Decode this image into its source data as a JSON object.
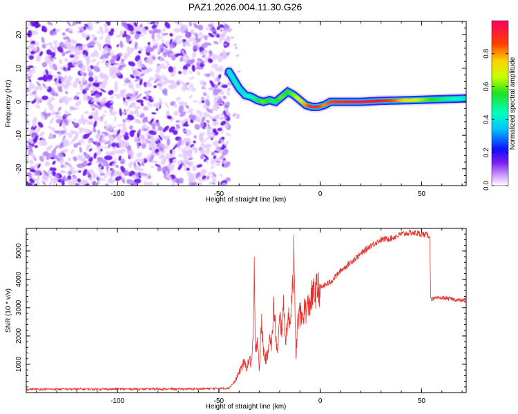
{
  "title": "PAZ1.2026.004.11.30.G26",
  "colors": {
    "snr_line": "#e8302a",
    "track_hot": "#ff2a3a",
    "track_green": "#22d84a",
    "track_cyan": "#20c8e6",
    "track_blue": "#1a3cf0",
    "noise_purple": "#7a1cf0"
  },
  "chart_data": [
    {
      "type": "heatmap",
      "title": "PAZ1.2026.004.11.30.G26",
      "xlabel": "Height of straight line (km)",
      "ylabel": "Frequency (Hz)",
      "xlim": [
        -145,
        72
      ],
      "ylim": [
        -25,
        24
      ],
      "xticks": [
        -100,
        -50,
        0,
        50
      ],
      "xtick_labels": [
        "-100",
        "-50",
        "0",
        "50"
      ],
      "yticks": [
        -20,
        -10,
        0,
        10,
        20
      ],
      "ytick_labels": [
        "-20",
        "-10",
        "0",
        "10",
        "20"
      ],
      "noise_region": {
        "x": [
          -145,
          -45
        ],
        "y": [
          -25,
          24
        ]
      },
      "ridge_x": [
        -45,
        -42,
        -40,
        -37,
        -34,
        -31,
        -28,
        -25,
        -22,
        -19,
        -16,
        -13,
        -10,
        -7,
        -4,
        -1,
        2,
        5,
        10,
        20,
        30,
        45,
        60,
        72
      ],
      "ridge_y": [
        9,
        6,
        4,
        2,
        1.5,
        0.5,
        0,
        0.5,
        0,
        1.5,
        3,
        2,
        0.5,
        -1,
        -1.5,
        -1.5,
        -1,
        0,
        0,
        0,
        0.3,
        0.5,
        0.8,
        1
      ],
      "ridge_amplitude": [
        0.15,
        0.3,
        0.35,
        0.4,
        0.45,
        0.5,
        0.6,
        0.55,
        0.5,
        0.6,
        0.55,
        0.6,
        0.7,
        0.8,
        0.9,
        0.9,
        0.8,
        0.85,
        0.9,
        0.95,
        0.95,
        0.7,
        0.5,
        0.4
      ]
    },
    {
      "type": "colorbar",
      "label": "Normalized spectral amplitude",
      "range": [
        0,
        1
      ],
      "ticks": [
        0.0,
        0.2,
        0.4,
        0.6,
        0.8
      ],
      "tick_labels": [
        "0.0",
        "0.2",
        "0.4",
        "0.6",
        "0.8"
      ]
    },
    {
      "type": "line",
      "xlabel": "Height of straight line (km)",
      "ylabel": "SNR (10 * v/v)",
      "xlim": [
        -145,
        72
      ],
      "ylim": [
        0,
        5800
      ],
      "xticks": [
        -100,
        -50,
        0,
        50
      ],
      "xtick_labels": [
        "-100",
        "-50",
        "0",
        "50"
      ],
      "yticks": [
        1000,
        2000,
        3000,
        4000,
        5000
      ],
      "ytick_labels": [
        "1000",
        "2000",
        "3000",
        "4000",
        "5000"
      ],
      "series": [
        {
          "name": "SNR",
          "x": [
            -145,
            -60,
            -45,
            -42,
            -40,
            -38,
            -36,
            -35,
            -34,
            -33,
            -32.5,
            -32,
            -31,
            -30,
            -29,
            -28,
            -27,
            -26,
            -25,
            -24,
            -23,
            -22,
            -21,
            -20,
            -19,
            -18,
            -17,
            -16,
            -15,
            -14,
            -13,
            -12.5,
            -12,
            -11,
            -10,
            -9,
            -8,
            -6,
            -4,
            -2,
            0,
            5,
            10,
            15,
            20,
            25,
            30,
            35,
            40,
            45,
            50,
            54,
            54.5,
            55,
            60,
            65,
            70,
            72
          ],
          "y": [
            120,
            130,
            160,
            400,
            700,
            1050,
            900,
            1200,
            1000,
            1800,
            4500,
            1200,
            2000,
            800,
            2500,
            1500,
            1200,
            1300,
            2200,
            1500,
            3100,
            2100,
            1300,
            2600,
            2300,
            3000,
            1800,
            2700,
            2400,
            3500,
            4800,
            2800,
            1300,
            2500,
            2800,
            2600,
            2900,
            3000,
            3400,
            3600,
            3700,
            3900,
            4300,
            4600,
            4900,
            5200,
            5400,
            5450,
            5600,
            5650,
            5600,
            5550,
            3400,
            3300,
            3350,
            3300,
            3250,
            3300
          ]
        }
      ]
    }
  ]
}
